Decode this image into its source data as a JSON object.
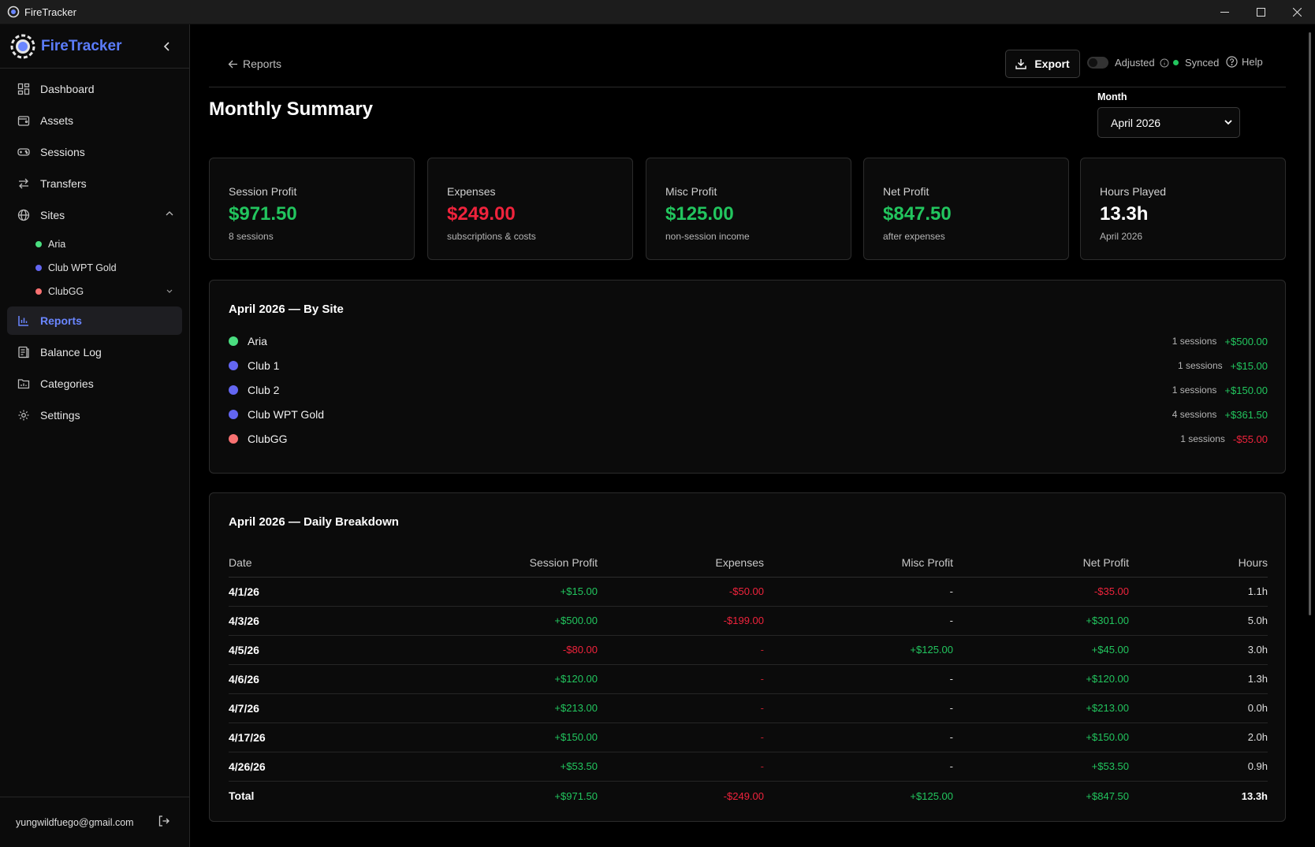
{
  "window": {
    "title": "FireTracker"
  },
  "brand": {
    "name": "FireTracker"
  },
  "nav": {
    "dashboard": "Dashboard",
    "assets": "Assets",
    "sessions": "Sessions",
    "transfers": "Transfers",
    "sites": "Sites",
    "reports": "Reports",
    "balance_log": "Balance Log",
    "categories": "Categories",
    "settings": "Settings",
    "site_items": [
      {
        "name": "Aria",
        "color": "#4ade80"
      },
      {
        "name": "Club WPT Gold",
        "color": "#6366f1"
      },
      {
        "name": "ClubGG",
        "color": "#f87171"
      }
    ]
  },
  "user": {
    "email": "yungwildfuego@gmail.com"
  },
  "topbar": {
    "back_label": "Reports",
    "export_label": "Export",
    "adjusted_label": "Adjusted",
    "synced_label": "Synced",
    "help_label": "Help"
  },
  "page": {
    "title": "Monthly Summary",
    "month_label": "Month",
    "month_value": "April 2026"
  },
  "cards": [
    {
      "label": "Session Profit",
      "value": "$971.50",
      "sub": "8 sessions",
      "color": "#22c55e"
    },
    {
      "label": "Expenses",
      "value": "$249.00",
      "sub": "subscriptions & costs",
      "color": "#ef233c"
    },
    {
      "label": "Misc Profit",
      "value": "$125.00",
      "sub": "non-session income",
      "color": "#22c55e"
    },
    {
      "label": "Net Profit",
      "value": "$847.50",
      "sub": "after expenses",
      "color": "#22c55e"
    },
    {
      "label": "Hours Played",
      "value": "13.3h",
      "sub": "April 2026",
      "color": "#ffffff"
    }
  ],
  "by_site": {
    "title": "April 2026 — By Site",
    "rows": [
      {
        "name": "Aria",
        "color": "#4ade80",
        "sessions": "1 sessions",
        "amount": "+$500.00",
        "tone": "pos"
      },
      {
        "name": "Club 1",
        "color": "#6366f1",
        "sessions": "1 sessions",
        "amount": "+$15.00",
        "tone": "pos"
      },
      {
        "name": "Club 2",
        "color": "#6366f1",
        "sessions": "1 sessions",
        "amount": "+$150.00",
        "tone": "pos"
      },
      {
        "name": "Club WPT Gold",
        "color": "#6366f1",
        "sessions": "4 sessions",
        "amount": "+$361.50",
        "tone": "pos"
      },
      {
        "name": "ClubGG",
        "color": "#f87171",
        "sessions": "1 sessions",
        "amount": "-$55.00",
        "tone": "neg"
      }
    ]
  },
  "daily": {
    "title": "April 2026 — Daily Breakdown",
    "headers": [
      "Date",
      "Session Profit",
      "Expenses",
      "Misc Profit",
      "Net Profit",
      "Hours"
    ],
    "rows": [
      {
        "date": "4/1/26",
        "session": "+$15.00",
        "expenses": "-$50.00",
        "misc": "-",
        "net": "-$35.00",
        "hours": "1.1h",
        "tones": [
          "pos",
          "neg",
          "neu",
          "neg"
        ]
      },
      {
        "date": "4/3/26",
        "session": "+$500.00",
        "expenses": "-$199.00",
        "misc": "-",
        "net": "+$301.00",
        "hours": "5.0h",
        "tones": [
          "pos",
          "neg",
          "neu",
          "pos"
        ]
      },
      {
        "date": "4/5/26",
        "session": "-$80.00",
        "expenses": "-",
        "misc": "+$125.00",
        "net": "+$45.00",
        "hours": "3.0h",
        "tones": [
          "neg",
          "neg-dim",
          "pos",
          "pos"
        ]
      },
      {
        "date": "4/6/26",
        "session": "+$120.00",
        "expenses": "-",
        "misc": "-",
        "net": "+$120.00",
        "hours": "1.3h",
        "tones": [
          "pos",
          "neg-dim",
          "neu",
          "pos"
        ]
      },
      {
        "date": "4/7/26",
        "session": "+$213.00",
        "expenses": "-",
        "misc": "-",
        "net": "+$213.00",
        "hours": "0.0h",
        "tones": [
          "pos",
          "neg-dim",
          "neu",
          "pos"
        ]
      },
      {
        "date": "4/17/26",
        "session": "+$150.00",
        "expenses": "-",
        "misc": "-",
        "net": "+$150.00",
        "hours": "2.0h",
        "tones": [
          "pos",
          "neg-dim",
          "neu",
          "pos"
        ]
      },
      {
        "date": "4/26/26",
        "session": "+$53.50",
        "expenses": "-",
        "misc": "-",
        "net": "+$53.50",
        "hours": "0.9h",
        "tones": [
          "pos",
          "neg-dim",
          "neu",
          "pos"
        ]
      }
    ],
    "total": {
      "date": "Total",
      "session": "+$971.50",
      "expenses": "-$249.00",
      "misc": "+$125.00",
      "net": "+$847.50",
      "hours": "13.3h"
    }
  }
}
